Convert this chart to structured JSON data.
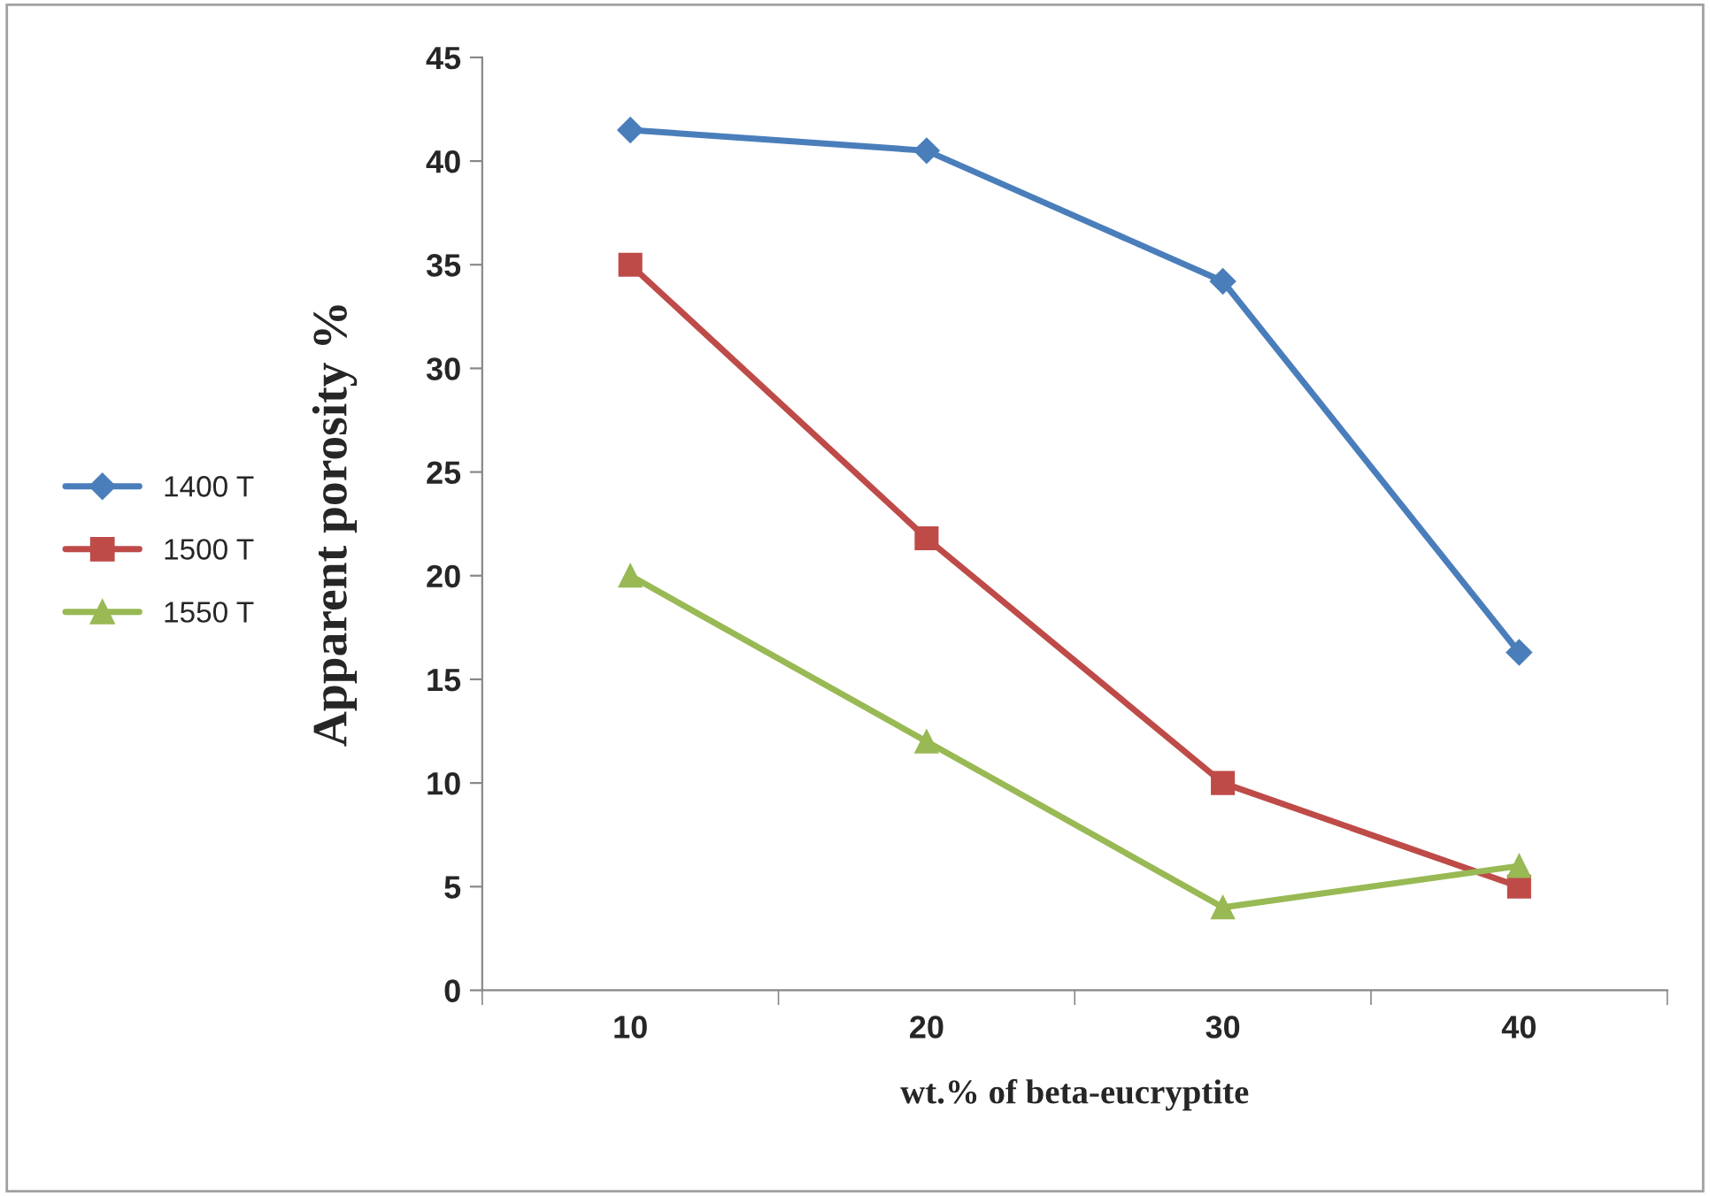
{
  "chart_data": {
    "type": "line",
    "xlabel": "wt.% of beta-eucryptite",
    "ylabel": "Apparent porosity %",
    "categories": [
      "10",
      "20",
      "30",
      "40"
    ],
    "series": [
      {
        "name": "1400 T",
        "color": "#4a7ebb",
        "marker": "diamond",
        "values": [
          41.5,
          40.5,
          34.2,
          16.3
        ]
      },
      {
        "name": "1500 T",
        "color": "#be4b48",
        "marker": "square",
        "values": [
          35,
          21.8,
          10,
          5
        ]
      },
      {
        "name": "1550 T",
        "color": "#98b954",
        "marker": "triangle",
        "values": [
          20,
          12,
          4,
          6
        ]
      }
    ],
    "ylim": [
      0,
      45
    ],
    "yticks": [
      0,
      5,
      10,
      15,
      20,
      25,
      30,
      35,
      40,
      45
    ],
    "grid": false,
    "legend": "left"
  }
}
